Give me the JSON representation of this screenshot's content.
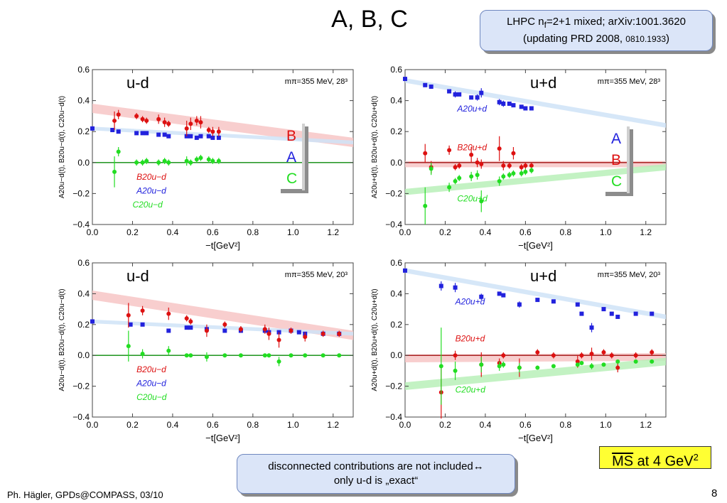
{
  "slide": {
    "title": "A, B, C",
    "callout_top_line1": "LHPC n",
    "callout_top_sub": "f",
    "callout_top_line1b": "=2+1 mixed; arXiv:1001.3620",
    "callout_top_line2a": "(updating PRD 2008, ",
    "callout_top_line2b": "0810.1933",
    "callout_top_line2c": ")",
    "callout_bottom_line1": "disconnected contributions are not included↔",
    "callout_bottom_line2": "only u-d is „exact“",
    "ms_label": "MS",
    "ms_rest": " at 4 GeV",
    "ms_sup": "2",
    "footer": "Ph. Hägler, GPDs@COMPASS, 03/10",
    "page_number": "8"
  },
  "colors": {
    "A": "#2222dd",
    "B": "#dd1111",
    "C": "#22dd22",
    "Abandcolor": "#cfe3f7",
    "Bbandcolor": "#f7c6c6",
    "Cbandcolor": "#b8f0b8"
  },
  "chart_data": [
    {
      "type": "scatter",
      "panel_label": "u-d",
      "mass_label": "mπ=355 MeV, 28³",
      "xlabel": "−t[GeV²]",
      "ylabel": "A20u−d(t), B20u−d(t), C20u−d(t)",
      "xlim": [
        0,
        1.3
      ],
      "ylim": [
        -0.4,
        0.6
      ],
      "xticks": [
        "0.0",
        "0.2",
        "0.4",
        "0.6",
        "0.8",
        "1.0",
        "1.2"
      ],
      "yticks": [
        "−0.4",
        "−0.2",
        "0.0",
        "0.2",
        "0.4",
        "0.6"
      ],
      "series_labels": {
        "B": "B20u−d",
        "A": "A20u−d",
        "C": "C20u−d"
      },
      "legend_box": [
        "B",
        "A",
        "C"
      ],
      "series": [
        {
          "name": "A",
          "x": [
            0.0,
            0.1,
            0.13,
            0.22,
            0.25,
            0.27,
            0.33,
            0.36,
            0.38,
            0.47,
            0.49,
            0.52,
            0.54,
            0.58,
            0.6,
            0.63
          ],
          "y": [
            0.22,
            0.21,
            0.2,
            0.19,
            0.19,
            0.19,
            0.18,
            0.18,
            0.17,
            0.17,
            0.17,
            0.16,
            0.17,
            0.17,
            0.16,
            0.16
          ],
          "err": [
            0.01,
            0.01,
            0.01,
            0.01,
            0.01,
            0.01,
            0.01,
            0.01,
            0.01,
            0.01,
            0.01,
            0.01,
            0.01,
            0.01,
            0.01,
            0.01
          ]
        },
        {
          "name": "B",
          "x": [
            0.11,
            0.13,
            0.22,
            0.25,
            0.27,
            0.33,
            0.36,
            0.38,
            0.47,
            0.49,
            0.52,
            0.54,
            0.58,
            0.6,
            0.63
          ],
          "y": [
            0.27,
            0.31,
            0.3,
            0.28,
            0.27,
            0.28,
            0.26,
            0.25,
            0.22,
            0.25,
            0.27,
            0.26,
            0.21,
            0.2,
            0.2
          ],
          "err": [
            0.06,
            0.03,
            0.02,
            0.02,
            0.02,
            0.03,
            0.03,
            0.02,
            0.05,
            0.04,
            0.03,
            0.04,
            0.02,
            0.03,
            0.03
          ]
        },
        {
          "name": "C",
          "x": [
            0.11,
            0.13,
            0.22,
            0.25,
            0.27,
            0.33,
            0.36,
            0.38,
            0.47,
            0.49,
            0.52,
            0.54,
            0.58,
            0.6,
            0.63
          ],
          "y": [
            -0.06,
            0.07,
            0.0,
            0.0,
            0.01,
            0.0,
            0.01,
            0.0,
            0.01,
            0.0,
            0.02,
            0.03,
            0.02,
            0.01,
            0.01
          ],
          "err": [
            0.1,
            0.03,
            0.02,
            0.02,
            0.02,
            0.02,
            0.02,
            0.02,
            0.03,
            0.02,
            0.02,
            0.02,
            0.02,
            0.02,
            0.02
          ]
        }
      ],
      "bands": [
        {
          "name": "B",
          "y0": 0.35,
          "y1": 0.13,
          "w": 0.03
        },
        {
          "name": "A",
          "y0": 0.22,
          "y1": 0.13,
          "w": 0.012
        }
      ]
    },
    {
      "type": "scatter",
      "panel_label": "u+d",
      "mass_label": "mπ=355 MeV, 28³",
      "xlabel": "−t[GeV²]",
      "ylabel": "A20u+d(t), B20u+d(t), C20u+d(t)",
      "xlim": [
        0,
        1.3
      ],
      "ylim": [
        -0.4,
        0.6
      ],
      "xticks": [
        "0.0",
        "0.2",
        "0.4",
        "0.6",
        "0.8",
        "1.0",
        "1.2"
      ],
      "yticks": [
        "−0.4",
        "−0.2",
        "0.0",
        "0.2",
        "0.4",
        "0.6"
      ],
      "series_labels": {
        "A": "A20u+d",
        "B": "B20u+d",
        "C": "C20u+d"
      },
      "legend_box": [
        "A",
        "B",
        "C"
      ],
      "series": [
        {
          "name": "A",
          "x": [
            0.0,
            0.1,
            0.13,
            0.22,
            0.25,
            0.27,
            0.33,
            0.36,
            0.38,
            0.47,
            0.49,
            0.52,
            0.54,
            0.58,
            0.6,
            0.63
          ],
          "y": [
            0.54,
            0.5,
            0.49,
            0.46,
            0.44,
            0.44,
            0.42,
            0.42,
            0.45,
            0.39,
            0.38,
            0.38,
            0.37,
            0.36,
            0.35,
            0.35
          ],
          "err": [
            0.01,
            0.01,
            0.01,
            0.01,
            0.02,
            0.01,
            0.01,
            0.02,
            0.03,
            0.02,
            0.02,
            0.01,
            0.01,
            0.01,
            0.01,
            0.01
          ]
        },
        {
          "name": "B",
          "x": [
            0.1,
            0.13,
            0.22,
            0.25,
            0.27,
            0.33,
            0.36,
            0.38,
            0.47,
            0.49,
            0.52,
            0.54,
            0.58,
            0.6,
            0.63
          ],
          "y": [
            0.06,
            -0.03,
            0.08,
            -0.03,
            -0.02,
            0.05,
            0.0,
            -0.01,
            0.09,
            -0.02,
            -0.02,
            0.06,
            -0.03,
            -0.02,
            -0.02
          ],
          "err": [
            0.06,
            0.04,
            0.03,
            0.02,
            0.02,
            0.05,
            0.03,
            0.03,
            0.08,
            0.03,
            0.02,
            0.04,
            0.02,
            0.02,
            0.02
          ]
        },
        {
          "name": "C",
          "x": [
            0.1,
            0.13,
            0.22,
            0.25,
            0.27,
            0.33,
            0.36,
            0.38,
            0.47,
            0.49,
            0.52,
            0.54,
            0.58,
            0.6,
            0.63
          ],
          "y": [
            -0.28,
            -0.04,
            -0.16,
            -0.12,
            -0.1,
            -0.09,
            -0.08,
            -0.25,
            -0.12,
            -0.09,
            -0.08,
            -0.07,
            -0.07,
            -0.06,
            -0.05
          ],
          "err": [
            0.12,
            0.04,
            0.03,
            0.02,
            0.02,
            0.03,
            0.03,
            0.07,
            0.03,
            0.02,
            0.02,
            0.02,
            0.02,
            0.02,
            0.02
          ]
        }
      ],
      "bands": [
        {
          "name": "A",
          "y0": 0.53,
          "y1": 0.24,
          "w": 0.015
        },
        {
          "name": "B",
          "y0": -0.01,
          "y1": -0.01,
          "w": 0.02
        },
        {
          "name": "C",
          "y0": -0.19,
          "y1": -0.03,
          "w": 0.02
        }
      ]
    },
    {
      "type": "scatter",
      "panel_label": "u-d",
      "mass_label": "mπ=355 MeV, 20³",
      "xlabel": "−t[GeV²]",
      "ylabel": "A20u−d(t), B20u−d(t), C20u−d(t)",
      "xlim": [
        0,
        1.3
      ],
      "ylim": [
        -0.4,
        0.6
      ],
      "xticks": [
        "0.0",
        "0.2",
        "0.4",
        "0.6",
        "0.8",
        "1.0",
        "1.2"
      ],
      "yticks": [
        "−0.4",
        "−0.2",
        "0.0",
        "0.2",
        "0.4",
        "0.6"
      ],
      "series_labels": {
        "B": "B20u−d",
        "A": "A20u−d",
        "C": "C20u−d"
      },
      "legend_box": [],
      "series": [
        {
          "name": "A",
          "x": [
            0.0,
            0.19,
            0.25,
            0.38,
            0.47,
            0.49,
            0.57,
            0.66,
            0.74,
            0.86,
            0.88,
            0.93,
            0.99,
            1.03,
            1.06,
            1.15,
            1.23
          ],
          "y": [
            0.22,
            0.2,
            0.2,
            0.16,
            0.18,
            0.18,
            0.17,
            0.16,
            0.16,
            0.16,
            0.15,
            0.15,
            0.16,
            0.15,
            0.14,
            0.14,
            0.14
          ],
          "err": [
            0.01,
            0.01,
            0.01,
            0.01,
            0.01,
            0.01,
            0.01,
            0.01,
            0.01,
            0.01,
            0.01,
            0.01,
            0.01,
            0.01,
            0.01,
            0.01,
            0.01
          ]
        },
        {
          "name": "B",
          "x": [
            0.18,
            0.25,
            0.38,
            0.47,
            0.49,
            0.57,
            0.66,
            0.74,
            0.86,
            0.88,
            0.93,
            0.99,
            1.06,
            1.15,
            1.23
          ],
          "y": [
            0.26,
            0.29,
            0.27,
            0.24,
            0.22,
            0.16,
            0.2,
            0.17,
            0.17,
            0.14,
            0.1,
            0.16,
            0.12,
            0.14,
            0.14
          ],
          "err": [
            0.08,
            0.03,
            0.04,
            0.02,
            0.02,
            0.04,
            0.02,
            0.02,
            0.03,
            0.04,
            0.05,
            0.02,
            0.03,
            0.02,
            0.02
          ]
        },
        {
          "name": "C",
          "x": [
            0.18,
            0.25,
            0.38,
            0.47,
            0.49,
            0.57,
            0.66,
            0.74,
            0.86,
            0.88,
            0.93,
            0.99,
            1.06,
            1.15,
            1.23
          ],
          "y": [
            0.06,
            0.01,
            0.03,
            0.0,
            0.0,
            -0.01,
            0.0,
            0.0,
            0.0,
            0.0,
            -0.04,
            0.0,
            0.0,
            0.0,
            0.0
          ],
          "err": [
            0.1,
            0.03,
            0.03,
            0.01,
            0.01,
            0.03,
            0.01,
            0.01,
            0.01,
            0.01,
            0.03,
            0.01,
            0.01,
            0.01,
            0.01
          ]
        }
      ],
      "bands": [
        {
          "name": "B",
          "y0": 0.39,
          "y1": 0.13,
          "w": 0.03
        },
        {
          "name": "A",
          "y0": 0.22,
          "y1": 0.14,
          "w": 0.012
        }
      ]
    },
    {
      "type": "scatter",
      "panel_label": "u+d",
      "mass_label": "mπ=355 MeV, 20³",
      "xlabel": "−t[GeV²]",
      "ylabel": "A20u+d(t), B20u+d(t), C20u+d(t)",
      "xlim": [
        0,
        1.3
      ],
      "ylim": [
        -0.4,
        0.6
      ],
      "xticks": [
        "0.0",
        "0.2",
        "0.4",
        "0.6",
        "0.8",
        "1.0",
        "1.2"
      ],
      "yticks": [
        "−0.4",
        "−0.2",
        "0.0",
        "0.2",
        "0.4",
        "0.6"
      ],
      "series_labels": {
        "A": "A20u+d",
        "B": "B20u+d",
        "C": "C20u+d"
      },
      "legend_box": [],
      "series": [
        {
          "name": "A",
          "x": [
            0.0,
            0.18,
            0.25,
            0.38,
            0.47,
            0.49,
            0.57,
            0.66,
            0.74,
            0.86,
            0.88,
            0.93,
            0.99,
            1.03,
            1.06,
            1.15,
            1.23
          ],
          "y": [
            0.55,
            0.45,
            0.44,
            0.38,
            0.4,
            0.39,
            0.33,
            0.36,
            0.35,
            0.33,
            0.27,
            0.18,
            0.3,
            0.27,
            0.25,
            0.27,
            0.27
          ],
          "err": [
            0.01,
            0.03,
            0.03,
            0.02,
            0.01,
            0.01,
            0.02,
            0.01,
            0.01,
            0.01,
            0.01,
            0.03,
            0.01,
            0.01,
            0.01,
            0.01,
            0.01
          ]
        },
        {
          "name": "B",
          "x": [
            0.18,
            0.25,
            0.38,
            0.47,
            0.49,
            0.57,
            0.66,
            0.74,
            0.86,
            0.88,
            0.93,
            0.99,
            1.03,
            1.06,
            1.15,
            1.23
          ],
          "y": [
            -0.24,
            0.0,
            -0.06,
            -0.05,
            0.0,
            -0.08,
            0.02,
            0.0,
            -0.04,
            0.0,
            0.01,
            0.02,
            0.0,
            -0.08,
            0.0,
            0.02
          ],
          "err": [
            0.17,
            0.03,
            0.08,
            0.03,
            0.02,
            0.06,
            0.02,
            0.02,
            0.04,
            0.02,
            0.04,
            0.02,
            0.02,
            0.03,
            0.02,
            0.02
          ]
        },
        {
          "name": "C",
          "x": [
            0.18,
            0.25,
            0.38,
            0.47,
            0.49,
            0.57,
            0.66,
            0.74,
            0.86,
            0.88,
            0.93,
            0.99,
            1.06,
            1.15,
            1.23
          ],
          "y": [
            -0.07,
            -0.1,
            -0.06,
            -0.07,
            -0.06,
            -0.08,
            -0.08,
            -0.07,
            -0.06,
            -0.05,
            -0.07,
            -0.06,
            -0.04,
            -0.04,
            -0.04
          ],
          "err": [
            0.25,
            0.06,
            0.05,
            0.03,
            0.02,
            0.03,
            0.01,
            0.01,
            0.01,
            0.01,
            0.02,
            0.01,
            0.01,
            0.01,
            0.01
          ]
        }
      ],
      "bands": [
        {
          "name": "A",
          "y0": 0.55,
          "y1": 0.25,
          "w": 0.015
        },
        {
          "name": "B",
          "y0": -0.02,
          "y1": -0.01,
          "w": 0.025
        },
        {
          "name": "C",
          "y0": -0.2,
          "y1": -0.04,
          "w": 0.025
        }
      ]
    }
  ]
}
